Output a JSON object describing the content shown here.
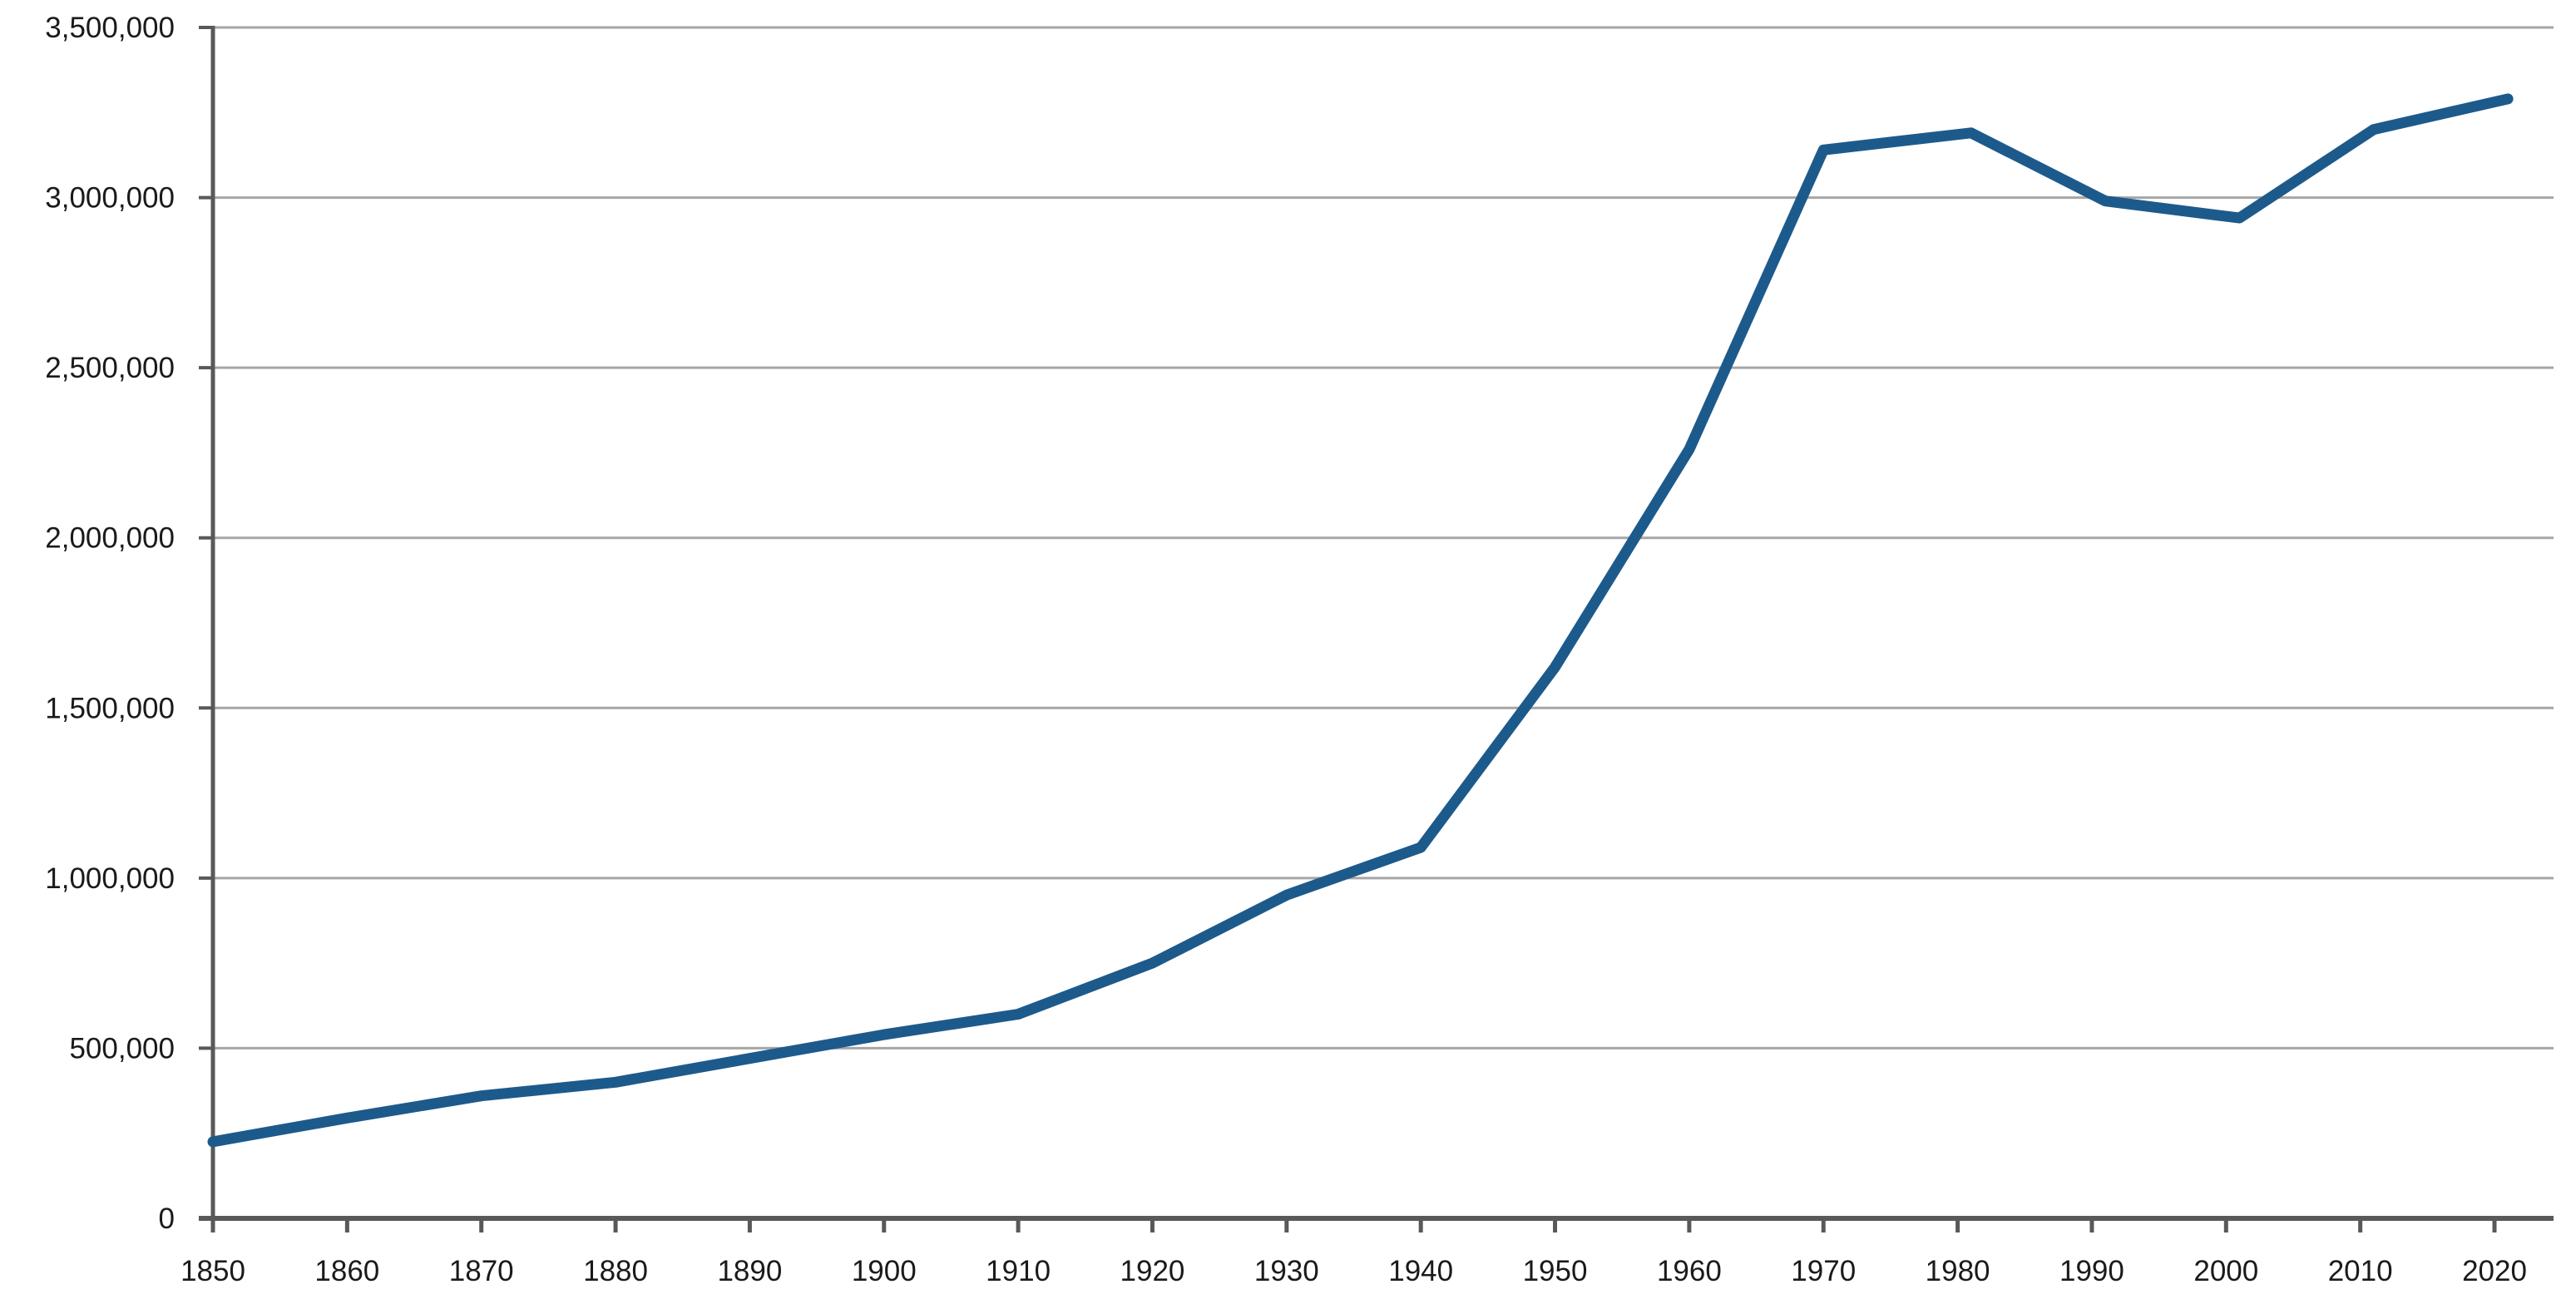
{
  "chart_data": {
    "type": "line",
    "title": "",
    "xlabel": "",
    "ylabel": "",
    "legend_position": "none",
    "grid": true,
    "series_name": "population",
    "x": [
      1850,
      1860,
      1870,
      1880,
      1890,
      1900,
      1910,
      1920,
      1930,
      1940,
      1950,
      1960,
      1970,
      1981,
      1991,
      2001,
      2011,
      2021
    ],
    "values": [
      225000,
      295000,
      360000,
      400000,
      470000,
      540000,
      600000,
      750000,
      950000,
      1090000,
      1620000,
      2260000,
      3140000,
      3190000,
      2990000,
      2940000,
      3200000,
      3290000
    ],
    "x_ticks": [
      {
        "year": 1850,
        "label": "1850"
      },
      {
        "year": 1860,
        "label": "1860"
      },
      {
        "year": 1870,
        "label": "1870"
      },
      {
        "year": 1880,
        "label": "1880"
      },
      {
        "year": 1890,
        "label": "1890"
      },
      {
        "year": 1900,
        "label": "1900"
      },
      {
        "year": 1910,
        "label": "1910"
      },
      {
        "year": 1920,
        "label": "1920"
      },
      {
        "year": 1930,
        "label": "1930"
      },
      {
        "year": 1940,
        "label": "1940"
      },
      {
        "year": 1950,
        "label": "1950"
      },
      {
        "year": 1960,
        "label": "1960"
      },
      {
        "year": 1970,
        "label": "1970"
      },
      {
        "year": 1980,
        "label": "1980"
      },
      {
        "year": 1990,
        "label": "1990"
      },
      {
        "year": 2000,
        "label": "2000"
      },
      {
        "year": 2010,
        "label": "2010"
      },
      {
        "year": 2020,
        "label": "2020"
      }
    ],
    "y_ticks": [
      {
        "value": 0,
        "label": "0"
      },
      {
        "value": 500000,
        "label": "500,000"
      },
      {
        "value": 1000000,
        "label": "1,000,000"
      },
      {
        "value": 1500000,
        "label": "1,500,000"
      },
      {
        "value": 2000000,
        "label": "2,000,000"
      },
      {
        "value": 2500000,
        "label": "2,500,000"
      },
      {
        "value": 3000000,
        "label": "3,000,000"
      },
      {
        "value": 3500000,
        "label": "3,500,000"
      }
    ],
    "xlim": [
      1850,
      2024.4
    ],
    "ylim": [
      0,
      3500000
    ],
    "colors": {
      "line": "#1d5a8c",
      "grid": "#a6a6a6",
      "axis": "#595959",
      "text": "#1a1a1a",
      "background": "#ffffff"
    }
  }
}
